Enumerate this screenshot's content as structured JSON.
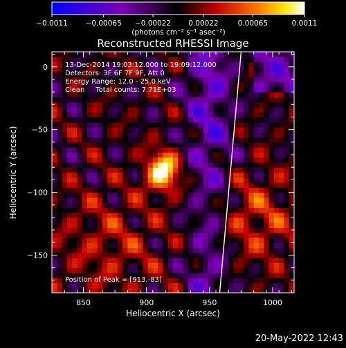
{
  "chart_data": {
    "type": "heatmap",
    "title": "Reconstructed RHESSI Image",
    "xlabel": "Heliocentric X (arcsec)",
    "ylabel": "Heliocentric Y (arcsec)",
    "xlim": [
      825,
      1017
    ],
    "ylim": [
      -180,
      12
    ],
    "xticks": [
      "850",
      "900",
      "950",
      "1000"
    ],
    "yticks": [
      "0",
      "−50",
      "−100",
      "−150"
    ],
    "colorbar": {
      "units": "(photons cm⁻² s⁻¹ asec⁻²)",
      "range": [
        -0.0011,
        0.0011
      ],
      "ticks": [
        "−0.0011",
        "−0.00065",
        "−0.00022",
        "0.00022",
        "0.00065",
        "0.0011"
      ],
      "stops": [
        "#0000ff",
        "#8a00c8",
        "#000000",
        "#c00000",
        "#ff6a00",
        "#ffe600",
        "#ffffff"
      ]
    },
    "peak": {
      "x": 913,
      "y": -83
    },
    "limb": {
      "x_top": 975,
      "x_bottom": 958
    },
    "annotations": {
      "time": "13-Dec-2014 19:03:12.000 to 19:09:12.000",
      "detectors": "Detectors: 3F 6F 7F 9F, Att 0",
      "energy": "Energy Range: 12.0 - 25.0 keV",
      "clean": "Clean     Total counts: 7.71E+03",
      "peak_label": "Position of Peak = [913,-83]"
    }
  },
  "footer": {
    "timestamp": "20-May-2022 12:43"
  }
}
